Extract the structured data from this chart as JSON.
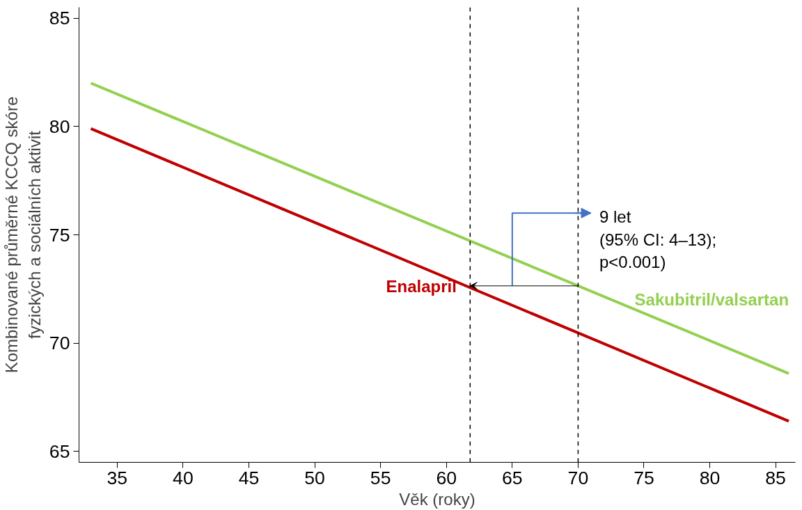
{
  "chart_data": {
    "type": "line",
    "xlabel": "Věk (roky)",
    "ylabel": "Kombinované průměrné KCCQ skóre\nfyzických a sociálních aktivit",
    "x": [
      33,
      86
    ],
    "series": [
      {
        "name": "Sakubitril/valsartan",
        "color": "#92d050",
        "values": [
          82.0,
          68.6
        ]
      },
      {
        "name": "Enalapril",
        "color": "#c00000",
        "values": [
          79.9,
          66.4
        ]
      }
    ],
    "xlim": [
      32.1,
      86.5
    ],
    "ylim": [
      64.5,
      85.5
    ],
    "xticks": [
      35,
      40,
      45,
      50,
      55,
      60,
      65,
      70,
      75,
      80,
      85
    ],
    "yticks": [
      65,
      70,
      75,
      80,
      85
    ],
    "ref_lines": [
      {
        "axis": "x",
        "value": 61.8,
        "color": "#000000",
        "line_style": "dashed"
      },
      {
        "axis": "x",
        "value": 70,
        "color": "#000000",
        "line_style": "dashed"
      }
    ],
    "annotations": [
      "9 let\n(95% CI: 4–13);\np<0.001)"
    ],
    "grid": false,
    "marker": "none",
    "line_style": "solid"
  }
}
